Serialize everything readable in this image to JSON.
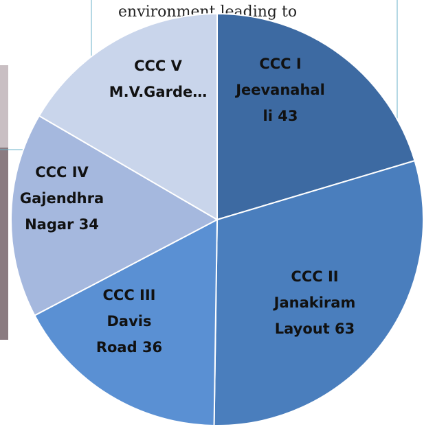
{
  "chart_data": {
    "type": "pie",
    "background_text": "environment leading to",
    "categories": [
      [
        "CCC I",
        "Jeevanahal",
        "li 43"
      ],
      [
        "CCC II",
        "Janakiram",
        "Layout 63"
      ],
      [
        "CCC III",
        "Davis",
        "Road  36"
      ],
      [
        "CCC IV",
        "Gajendhra",
        "Nagar 34"
      ],
      [
        "CCC V",
        "M.V.Garde…"
      ]
    ],
    "values": [
      43,
      63,
      36,
      34,
      35
    ],
    "colors": [
      "#3d6aa2",
      "#4a7ebd",
      "#5a90d3",
      "#a5b8de",
      "#c9d5eb"
    ]
  }
}
